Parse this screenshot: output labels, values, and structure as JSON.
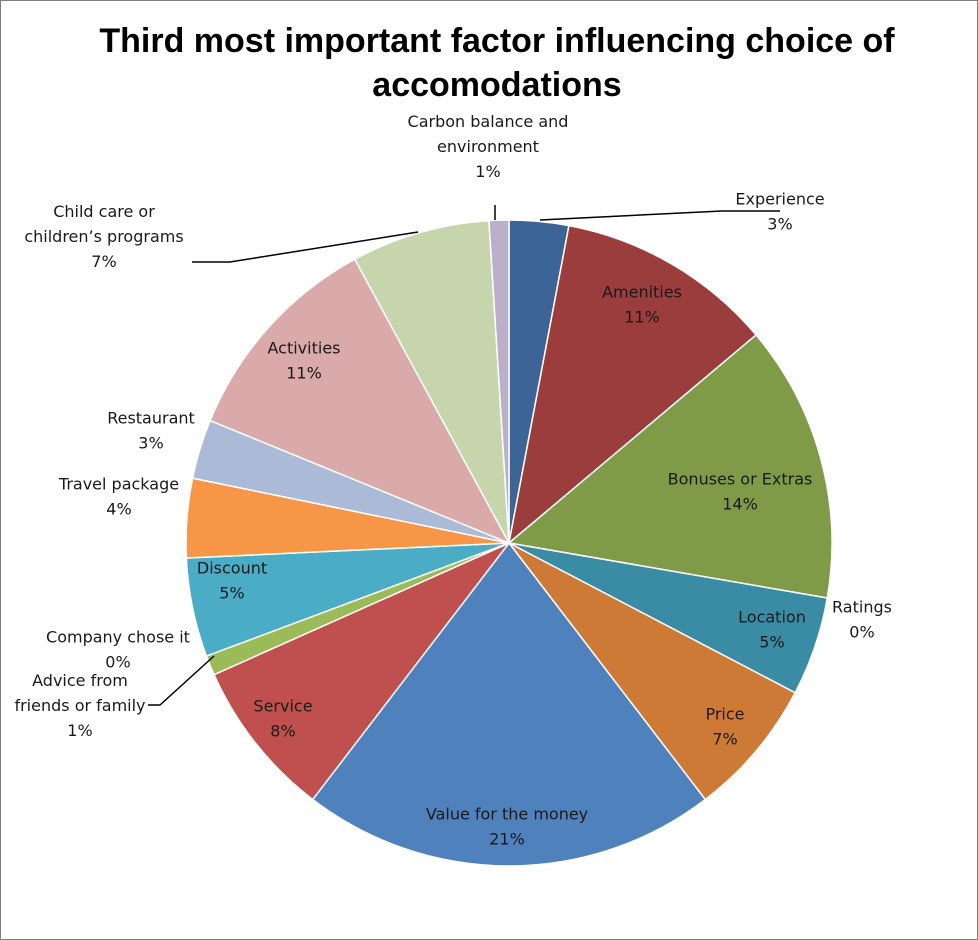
{
  "chart_data": {
    "type": "pie",
    "title_lines": [
      "Third most important factor influencing choice of",
      "accomodations"
    ],
    "unit": "%",
    "slices": [
      {
        "name": "Experience",
        "label_lines": [
          "Experience"
        ],
        "value": 3,
        "color": "#3C6497",
        "percent_label": "3%"
      },
      {
        "name": "Amenities",
        "label_lines": [
          "Amenities"
        ],
        "value": 11,
        "color": "#9B3D3C",
        "percent_label": "11%"
      },
      {
        "name": "Bonuses or Extras",
        "label_lines": [
          "Bonuses or Extras"
        ],
        "value": 14,
        "color": "#7F9B48",
        "percent_label": "14%"
      },
      {
        "name": "Ratings",
        "label_lines": [
          "Ratings"
        ],
        "value": 0,
        "color": "#6E558F",
        "percent_label": "0%"
      },
      {
        "name": "Location",
        "label_lines": [
          "Location"
        ],
        "value": 5,
        "color": "#3A8BA4",
        "percent_label": "5%"
      },
      {
        "name": "Price",
        "label_lines": [
          "Price"
        ],
        "value": 7,
        "color": "#CD7A37",
        "percent_label": "7%"
      },
      {
        "name": "Value for the money",
        "label_lines": [
          "Value for the money"
        ],
        "value": 21,
        "color": "#4F81BD",
        "percent_label": "21%"
      },
      {
        "name": "Service",
        "label_lines": [
          "Service"
        ],
        "value": 8,
        "color": "#C0504D",
        "percent_label": "8%"
      },
      {
        "name": "Advice from friends or family",
        "label_lines": [
          "Advice from",
          "friends or family"
        ],
        "value": 1,
        "color": "#9BBB59",
        "percent_label": "1%"
      },
      {
        "name": "Company chose it",
        "label_lines": [
          "Company chose it"
        ],
        "value": 0,
        "color": "#8064A2",
        "percent_label": "0%"
      },
      {
        "name": "Discount",
        "label_lines": [
          "Discount"
        ],
        "value": 5,
        "color": "#4BACC6",
        "percent_label": "5%"
      },
      {
        "name": "Travel package",
        "label_lines": [
          "Travel package"
        ],
        "value": 4,
        "color": "#F79646",
        "percent_label": "4%"
      },
      {
        "name": "Restaurant",
        "label_lines": [
          "Restaurant"
        ],
        "value": 3,
        "color": "#AABAD7",
        "percent_label": "3%"
      },
      {
        "name": "Activities",
        "label_lines": [
          "Activities"
        ],
        "value": 11,
        "color": "#D9AAA9",
        "percent_label": "11%"
      },
      {
        "name": "Child care or children’s programs",
        "label_lines": [
          "Child care or",
          "children’s programs"
        ],
        "value": 7,
        "color": "#C6D5AC",
        "percent_label": "7%"
      },
      {
        "name": "Carbon balance and environment",
        "label_lines": [
          "Carbon balance and",
          "environment"
        ],
        "value": 1,
        "color": "#BAB0C9",
        "percent_label": "1%"
      }
    ]
  }
}
